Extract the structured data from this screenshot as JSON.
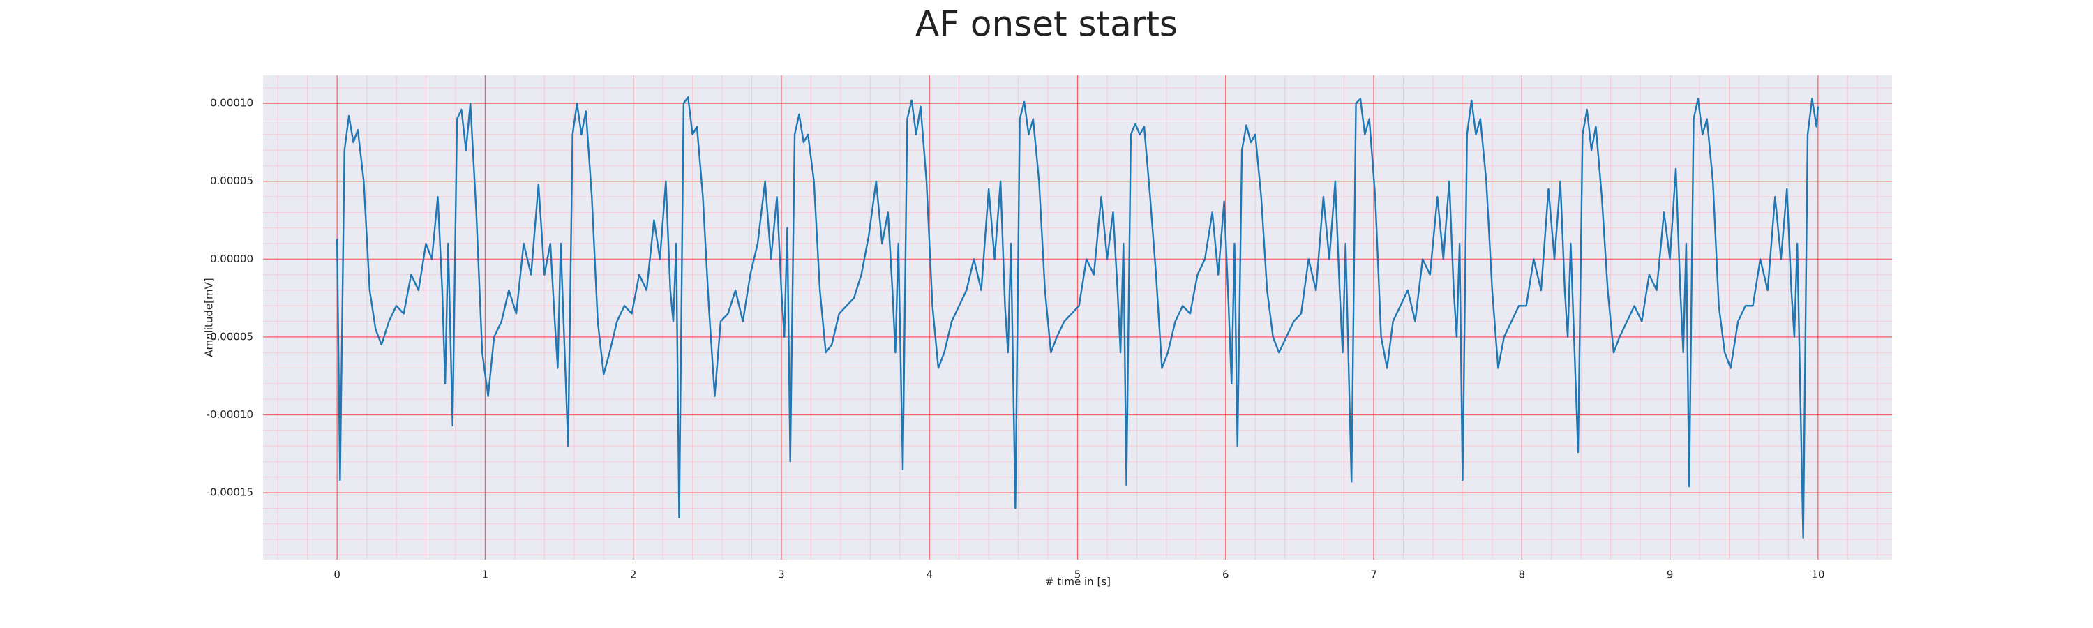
{
  "chart_data": {
    "type": "line",
    "title": "AF onset starts",
    "xlabel": "# time in [s]",
    "ylabel": "Amplitude[mV]",
    "color": "#1f77b4",
    "grid": true,
    "minor_divisions": 5,
    "xlim": [
      -0.5,
      10.5
    ],
    "ylim": [
      -0.000193,
      0.000118
    ],
    "xticks": [
      0,
      1,
      2,
      3,
      4,
      5,
      6,
      7,
      8,
      9,
      10
    ],
    "yticks": [
      {
        "value": -0.00015,
        "label": "-0.00015"
      },
      {
        "value": -0.0001,
        "label": "-0.00010"
      },
      {
        "value": -5e-05,
        "label": "-0.00005"
      },
      {
        "value": 0,
        "label": "0.00000"
      },
      {
        "value": 5e-05,
        "label": "0.00005"
      },
      {
        "value": 0.0001,
        "label": "0.00010"
      }
    ],
    "x": [
      0,
      0.02,
      0.05,
      0.08,
      0.11,
      0.14,
      0.18,
      0.22,
      0.26,
      0.3,
      0.35,
      0.4,
      0.45,
      0.5,
      0.55,
      0.6,
      0.64,
      0.68,
      0.71,
      0.73,
      0.75,
      0.78,
      0.81,
      0.84,
      0.87,
      0.9,
      0.94,
      0.98,
      1.02,
      1.06,
      1.11,
      1.16,
      1.21,
      1.26,
      1.31,
      1.36,
      1.4,
      1.44,
      1.47,
      1.49,
      1.51,
      1.56,
      1.59,
      1.62,
      1.65,
      1.68,
      1.72,
      1.76,
      1.8,
      1.84,
      1.89,
      1.94,
      1.99,
      2.04,
      2.09,
      2.14,
      2.18,
      2.22,
      2.25,
      2.27,
      2.29,
      2.31,
      2.34,
      2.37,
      2.4,
      2.43,
      2.47,
      2.51,
      2.55,
      2.59,
      2.64,
      2.69,
      2.74,
      2.79,
      2.84,
      2.89,
      2.93,
      2.97,
      3.0,
      3.02,
      3.04,
      3.06,
      3.09,
      3.12,
      3.15,
      3.18,
      3.22,
      3.26,
      3.3,
      3.34,
      3.39,
      3.44,
      3.49,
      3.54,
      3.59,
      3.64,
      3.68,
      3.72,
      3.75,
      3.77,
      3.79,
      3.82,
      3.85,
      3.88,
      3.91,
      3.94,
      3.98,
      4.02,
      4.06,
      4.1,
      4.15,
      4.2,
      4.25,
      4.3,
      4.35,
      4.4,
      4.44,
      4.48,
      4.51,
      4.53,
      4.55,
      4.58,
      4.61,
      4.64,
      4.67,
      4.7,
      4.74,
      4.78,
      4.82,
      4.86,
      4.91,
      4.96,
      5.01,
      5.06,
      5.11,
      5.16,
      5.2,
      5.24,
      5.27,
      5.29,
      5.31,
      5.33,
      5.36,
      5.39,
      5.42,
      5.45,
      5.49,
      5.53,
      5.57,
      5.61,
      5.66,
      5.71,
      5.76,
      5.81,
      5.86,
      5.91,
      5.95,
      5.99,
      6.02,
      6.04,
      6.06,
      6.08,
      6.11,
      6.14,
      6.17,
      6.2,
      6.24,
      6.28,
      6.32,
      6.36,
      6.41,
      6.46,
      6.51,
      6.56,
      6.61,
      6.66,
      6.7,
      6.74,
      6.77,
      6.79,
      6.81,
      6.85,
      6.88,
      6.91,
      6.94,
      6.97,
      7.01,
      7.05,
      7.09,
      7.13,
      7.18,
      7.23,
      7.28,
      7.33,
      7.38,
      7.43,
      7.47,
      7.51,
      7.54,
      7.56,
      7.58,
      7.6,
      7.63,
      7.66,
      7.69,
      7.72,
      7.76,
      7.8,
      7.84,
      7.88,
      7.93,
      7.98,
      8.03,
      8.08,
      8.13,
      8.18,
      8.22,
      8.26,
      8.29,
      8.31,
      8.33,
      8.38,
      8.41,
      8.44,
      8.47,
      8.5,
      8.54,
      8.58,
      8.62,
      8.66,
      8.71,
      8.76,
      8.81,
      8.86,
      8.91,
      8.96,
      9.0,
      9.04,
      9.07,
      9.09,
      9.11,
      9.13,
      9.16,
      9.19,
      9.22,
      9.25,
      9.29,
      9.33,
      9.37,
      9.41,
      9.46,
      9.51,
      9.56,
      9.61,
      9.66,
      9.71,
      9.75,
      9.79,
      9.82,
      9.84,
      9.86,
      9.9,
      9.93,
      9.96,
      9.99,
      10.0
    ],
    "values": [
      1.3e-05,
      -0.000142,
      7e-05,
      9.2e-05,
      7.5e-05,
      8.3e-05,
      5e-05,
      -2e-05,
      -4.5e-05,
      -5.5e-05,
      -4e-05,
      -3e-05,
      -3.5e-05,
      -1e-05,
      -2e-05,
      1e-05,
      0.0,
      4e-05,
      -2e-05,
      -8e-05,
      1e-05,
      -0.000107,
      9e-05,
      9.6e-05,
      7e-05,
      0.0001,
      3e-05,
      -6e-05,
      -8.8e-05,
      -5e-05,
      -4e-05,
      -2e-05,
      -3.5e-05,
      1e-05,
      -1e-05,
      4.8e-05,
      -1e-05,
      1e-05,
      -4e-05,
      -7e-05,
      1e-05,
      -0.00012,
      8e-05,
      0.0001,
      8e-05,
      9.5e-05,
      4e-05,
      -4e-05,
      -7.4e-05,
      -6e-05,
      -4e-05,
      -3e-05,
      -3.5e-05,
      -1e-05,
      -2e-05,
      2.5e-05,
      0.0,
      5e-05,
      -2e-05,
      -4e-05,
      1e-05,
      -0.000166,
      0.0001,
      0.000104,
      8e-05,
      8.5e-05,
      4e-05,
      -3e-05,
      -8.8e-05,
      -4e-05,
      -3.5e-05,
      -2e-05,
      -4e-05,
      -1e-05,
      1e-05,
      5e-05,
      0.0,
      4e-05,
      -2e-05,
      -5e-05,
      2e-05,
      -0.00013,
      8e-05,
      9.3e-05,
      7.5e-05,
      8e-05,
      5e-05,
      -2e-05,
      -6e-05,
      -5.5e-05,
      -3.5e-05,
      -3e-05,
      -2.5e-05,
      -1e-05,
      1.5e-05,
      5e-05,
      1e-05,
      3e-05,
      -2e-05,
      -6e-05,
      1e-05,
      -0.000135,
      9e-05,
      0.000102,
      8e-05,
      9.8e-05,
      5e-05,
      -3e-05,
      -7e-05,
      -6e-05,
      -4e-05,
      -3e-05,
      -2e-05,
      0.0,
      -2e-05,
      4.5e-05,
      0.0,
      5e-05,
      -3e-05,
      -6e-05,
      1e-05,
      -0.00016,
      9e-05,
      0.000101,
      8e-05,
      9e-05,
      5e-05,
      -2e-05,
      -6e-05,
      -5e-05,
      -4e-05,
      -3.5e-05,
      -3e-05,
      0.0,
      -1e-05,
      4e-05,
      0.0,
      3e-05,
      -2e-05,
      -6e-05,
      1e-05,
      -0.000145,
      8e-05,
      8.7e-05,
      8e-05,
      8.5e-05,
      4e-05,
      -1e-05,
      -7e-05,
      -6e-05,
      -4e-05,
      -3e-05,
      -3.5e-05,
      -1e-05,
      0.0,
      3e-05,
      -1e-05,
      3.7e-05,
      -3e-05,
      -8e-05,
      1e-05,
      -0.00012,
      7e-05,
      8.6e-05,
      7.5e-05,
      8e-05,
      4e-05,
      -2e-05,
      -5e-05,
      -6e-05,
      -5e-05,
      -4e-05,
      -3.5e-05,
      0.0,
      -2e-05,
      4e-05,
      0.0,
      5e-05,
      -2e-05,
      -6e-05,
      1e-05,
      -0.000143,
      0.0001,
      0.000103,
      8e-05,
      9e-05,
      4e-05,
      -5e-05,
      -7e-05,
      -4e-05,
      -3e-05,
      -2e-05,
      -4e-05,
      0.0,
      -1e-05,
      4e-05,
      0.0,
      5e-05,
      -2e-05,
      -5e-05,
      1e-05,
      -0.000142,
      8e-05,
      0.000102,
      8e-05,
      9e-05,
      5e-05,
      -2e-05,
      -7e-05,
      -5e-05,
      -4e-05,
      -3e-05,
      -3e-05,
      0.0,
      -2e-05,
      4.5e-05,
      0.0,
      5e-05,
      -2e-05,
      -5e-05,
      1e-05,
      -0.000124,
      8e-05,
      9.6e-05,
      7e-05,
      8.5e-05,
      4e-05,
      -2e-05,
      -6e-05,
      -5e-05,
      -4e-05,
      -3e-05,
      -4e-05,
      -1e-05,
      -2e-05,
      3e-05,
      0.0,
      5.8e-05,
      -2e-05,
      -6e-05,
      1e-05,
      -0.000146,
      9e-05,
      0.000103,
      8e-05,
      9e-05,
      5e-05,
      -3e-05,
      -6e-05,
      -7e-05,
      -4e-05,
      -3e-05,
      -3e-05,
      0.0,
      -2e-05,
      4e-05,
      0.0,
      4.5e-05,
      -2e-05,
      -5e-05,
      1e-05,
      -0.000179,
      8e-05,
      0.000103,
      8.5e-05,
      9.8e-05
    ]
  }
}
